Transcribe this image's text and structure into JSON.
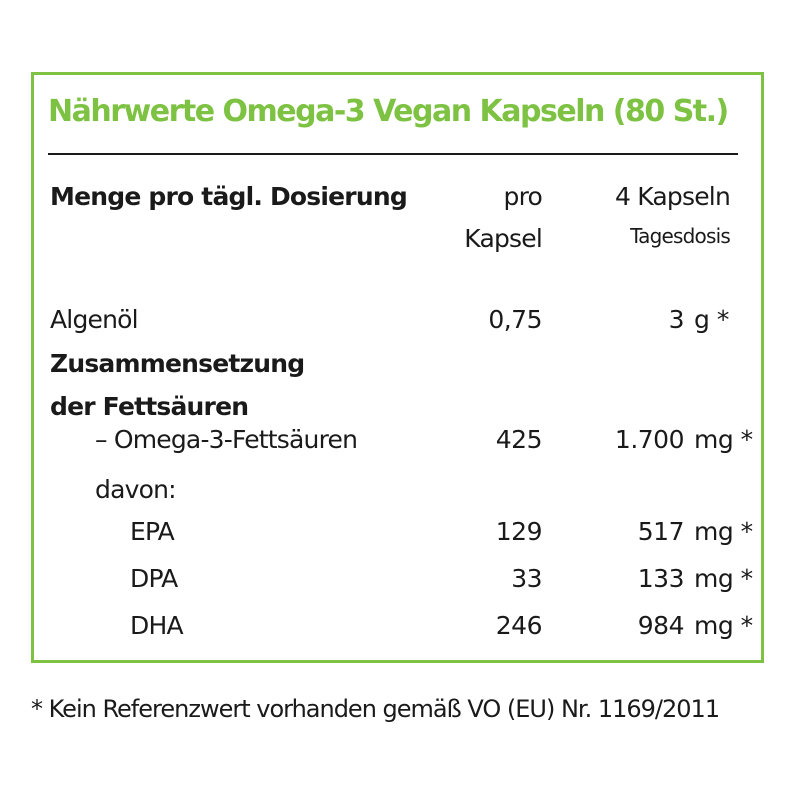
{
  "title": "Nährwerte Omega-3 Vegan Kapseln (80 St.)",
  "header": {
    "label": "Menge pro tägl. Dosierung",
    "col1_line1": "pro",
    "col1_line2": "Kapsel",
    "col2_line1": "4 Kapseln",
    "col2_line2": "Tagesdosis"
  },
  "rows": [
    {
      "label": "Algenöl",
      "per_capsule": "0,75",
      "per_day": "3",
      "unit": "g *"
    },
    {
      "label": "– Omega-3-Fettsäuren",
      "per_capsule": "425",
      "per_day": "1.700",
      "unit": "mg *"
    },
    {
      "label": "EPA",
      "per_capsule": "129",
      "per_day": "517",
      "unit": "mg *"
    },
    {
      "label": "DPA",
      "per_capsule": "33",
      "per_day": "133",
      "unit": "mg *"
    },
    {
      "label": "DHA",
      "per_capsule": "246",
      "per_day": "984",
      "unit": "mg *"
    }
  ],
  "section": {
    "line1": "Zusammensetzung",
    "line2": "der Fettsäuren",
    "sub": "davon:"
  },
  "footnote": "* Kein Referenzwert vorhanden gemäß VO (EU) Nr. 1169/2011",
  "colors": {
    "accent": "#7dc242",
    "text": "#1a1a1a"
  }
}
